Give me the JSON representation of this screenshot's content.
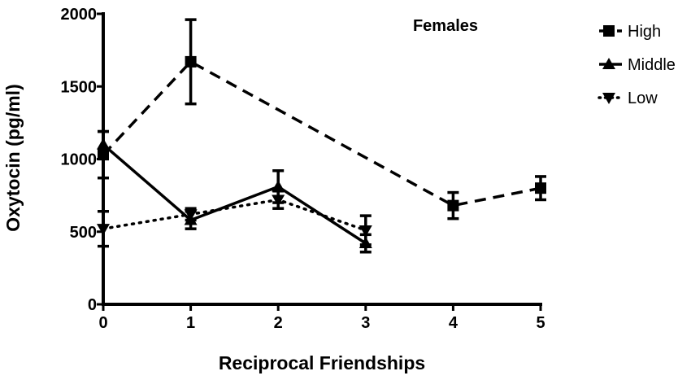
{
  "chart_data": {
    "type": "line",
    "annotation": "Females",
    "xlabel": "Reciprocal Friendships",
    "ylabel": "Oxytocin (pg/ml)",
    "xlim": [
      0,
      5
    ],
    "ylim": [
      0,
      2000
    ],
    "xticks": [
      0,
      1,
      2,
      3,
      4,
      5
    ],
    "yticks": [
      0,
      500,
      1000,
      1500,
      2000
    ],
    "grid": false,
    "legend_position": "right",
    "series": [
      {
        "name": "High",
        "marker": "square",
        "line_style": "dashed",
        "points": [
          {
            "x": 0,
            "y": 1030,
            "err": 160
          },
          {
            "x": 1,
            "y": 1670,
            "err": 290
          },
          {
            "x": 4,
            "y": 680,
            "err": 90
          },
          {
            "x": 5,
            "y": 800,
            "err": 80
          }
        ]
      },
      {
        "name": "Middle",
        "marker": "triangle-up",
        "line_style": "solid",
        "points": [
          {
            "x": 0,
            "y": 1100,
            "err": 90
          },
          {
            "x": 1,
            "y": 580,
            "err": 60
          },
          {
            "x": 2,
            "y": 810,
            "err": 110
          },
          {
            "x": 3,
            "y": 420,
            "err": 60
          }
        ]
      },
      {
        "name": "Low",
        "marker": "triangle-down",
        "line_style": "dotted",
        "points": [
          {
            "x": 0,
            "y": 520,
            "err": 120
          },
          {
            "x": 1,
            "y": 620,
            "err": 40
          },
          {
            "x": 2,
            "y": 720,
            "err": 60
          },
          {
            "x": 3,
            "y": 510,
            "err": 100
          }
        ]
      }
    ]
  }
}
